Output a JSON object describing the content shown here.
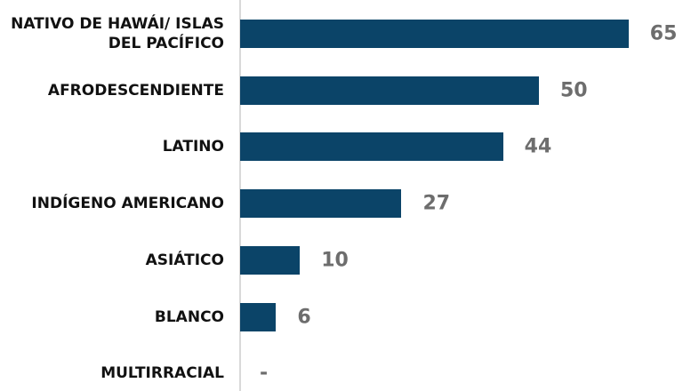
{
  "chart_data": {
    "type": "bar",
    "orientation": "horizontal",
    "categories": [
      "NATIVO DE HAWÁI/ ISLAS DEL PACÍFICO",
      "AFRODESCENDIENTE",
      "LATINO",
      "INDÍGENO AMERICANO",
      "ASIÁTICO",
      "BLANCO",
      "MULTIRRACIAL"
    ],
    "values": [
      65,
      50,
      44,
      27,
      10,
      6,
      null
    ],
    "value_labels": [
      "65",
      "50",
      "44",
      "27",
      "10",
      "6",
      "-"
    ],
    "color": "#0b4468"
  }
}
